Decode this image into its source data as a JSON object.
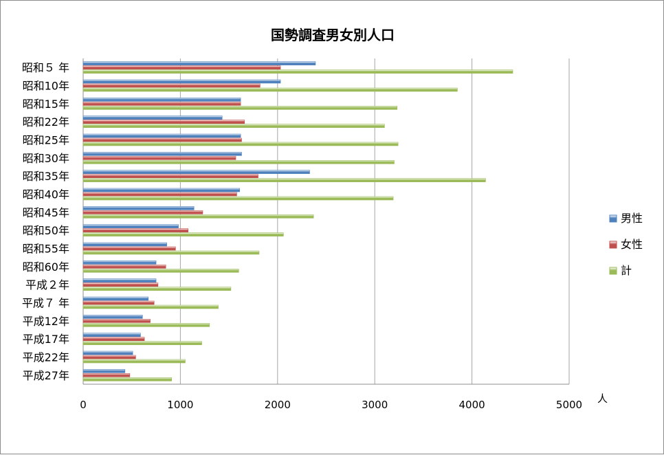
{
  "chart_data": {
    "type": "bar",
    "orientation": "horizontal",
    "title": "国勢調査男女別人口",
    "xlabel": "",
    "ylabel": "",
    "unit": "人",
    "xlim": [
      0,
      5000
    ],
    "xticks": [
      0,
      1000,
      2000,
      3000,
      4000,
      5000
    ],
    "grid": true,
    "legend_position": "right",
    "categories": [
      "昭和５ 年",
      "昭和10年",
      "昭和15年",
      "昭和22年",
      "昭和25年",
      "昭和30年",
      "昭和35年",
      "昭和40年",
      "昭和45年",
      "昭和50年",
      "昭和55年",
      "昭和60年",
      "平成２年",
      "平成７ 年",
      "平成12年",
      "平成17年",
      "平成22年",
      "平成27年"
    ],
    "series": [
      {
        "name": "男性",
        "color": "#4f81bd",
        "values": [
          2390,
          2030,
          1620,
          1430,
          1620,
          1630,
          2330,
          1610,
          1140,
          980,
          860,
          750,
          750,
          670,
          610,
          590,
          510,
          430
        ]
      },
      {
        "name": "女性",
        "color": "#c0504d",
        "values": [
          2030,
          1820,
          1620,
          1660,
          1630,
          1570,
          1800,
          1580,
          1230,
          1080,
          950,
          850,
          770,
          730,
          690,
          630,
          540,
          480
        ]
      },
      {
        "name": "計",
        "color": "#9bbb59",
        "values": [
          4420,
          3850,
          3230,
          3100,
          3240,
          3200,
          4140,
          3190,
          2370,
          2060,
          1810,
          1600,
          1520,
          1390,
          1300,
          1220,
          1050,
          910
        ]
      }
    ]
  }
}
